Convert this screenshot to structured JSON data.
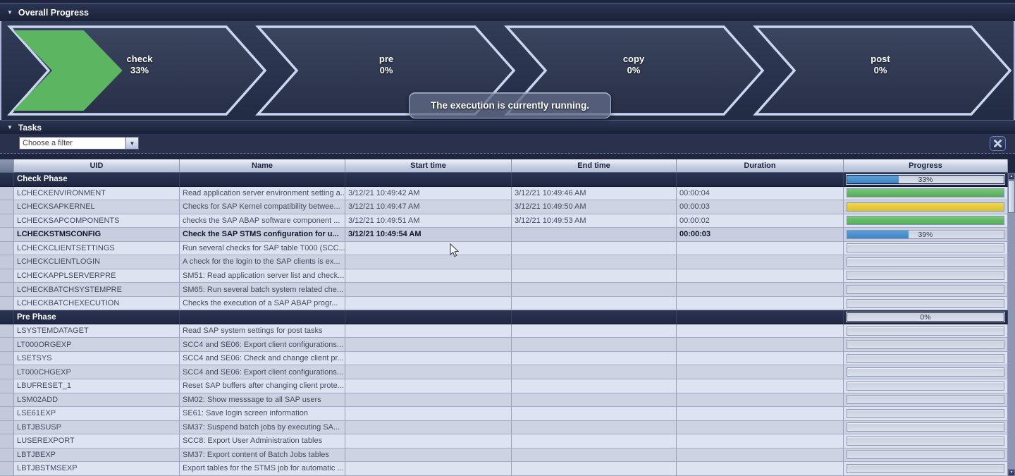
{
  "overall_progress": {
    "title": "Overall Progress",
    "phases": [
      {
        "label": "check",
        "percent": "33%",
        "fill": 33
      },
      {
        "label": "pre",
        "percent": "0%",
        "fill": 0
      },
      {
        "label": "copy",
        "percent": "0%",
        "fill": 0
      },
      {
        "label": "post",
        "percent": "0%",
        "fill": 0
      }
    ],
    "tooltip": "The execution is currently running."
  },
  "tasks": {
    "title": "Tasks",
    "filter_value": "Choose a filter",
    "columns": [
      "UID",
      "Name",
      "Start time",
      "End time",
      "Duration",
      "Progress"
    ],
    "rows": [
      {
        "type": "group",
        "uid": "Check Phase",
        "name": "",
        "start": "",
        "end": "",
        "duration": "",
        "progress": {
          "kind": "group",
          "value": 33,
          "label": "33%"
        }
      },
      {
        "type": "task",
        "uid": "LCHECKENVIRONMENT",
        "name": "Read application server environment setting a...",
        "start": "3/12/21 10:49:42 AM",
        "end": "3/12/21 10:49:46 AM",
        "duration": "00:00:04",
        "progress": {
          "kind": "full",
          "color": "green"
        }
      },
      {
        "type": "task",
        "uid": "LCHECKSAPKERNEL",
        "name": "Checks for SAP Kernel compatibility betwee...",
        "start": "3/12/21 10:49:47 AM",
        "end": "3/12/21 10:49:50 AM",
        "duration": "00:00:03",
        "progress": {
          "kind": "full",
          "color": "yellow"
        }
      },
      {
        "type": "task",
        "uid": "LCHECKSAPCOMPONENTS",
        "name": "checks the SAP ABAP software component ...",
        "start": "3/12/21 10:49:51 AM",
        "end": "3/12/21 10:49:53 AM",
        "duration": "00:00:02",
        "progress": {
          "kind": "full",
          "color": "green"
        }
      },
      {
        "type": "task",
        "emphasis": true,
        "uid": "LCHECKSTMSCONFIG",
        "name": "Check the SAP STMS configuration for u...",
        "start": "3/12/21 10:49:54 AM",
        "end": "",
        "duration": "00:00:03",
        "progress": {
          "kind": "partial",
          "value": 39,
          "label": "39%",
          "color": "blue"
        }
      },
      {
        "type": "task",
        "uid": "LCHECKCLIENTSETTINGS",
        "name": "Run several checks for SAP table T000 (SCC...",
        "start": "",
        "end": "",
        "duration": "",
        "progress": {
          "kind": "empty"
        }
      },
      {
        "type": "task",
        "uid": "LCHECKCLIENTLOGIN",
        "name": "A check for the login to the SAP clients is ex...",
        "start": "",
        "end": "",
        "duration": "",
        "progress": {
          "kind": "empty"
        }
      },
      {
        "type": "task",
        "uid": "LCHECKAPPLSERVERPRE",
        "name": "SM51: Read application server list and check...",
        "start": "",
        "end": "",
        "duration": "",
        "progress": {
          "kind": "empty"
        }
      },
      {
        "type": "task",
        "uid": "LCHECKBATCHSYSTEMPRE",
        "name": "SM65: Run several batch system related che...",
        "start": "",
        "end": "",
        "duration": "",
        "progress": {
          "kind": "empty"
        }
      },
      {
        "type": "task",
        "uid": "LCHECKBATCHEXECUTION",
        "name": "Checks the execution of a SAP ABAP progr...",
        "start": "",
        "end": "",
        "duration": "",
        "progress": {
          "kind": "empty"
        }
      },
      {
        "type": "group",
        "uid": "Pre Phase",
        "name": "",
        "start": "",
        "end": "",
        "duration": "",
        "progress": {
          "kind": "group",
          "value": 0,
          "label": "0%"
        }
      },
      {
        "type": "task",
        "uid": "LSYSTEMDATAGET",
        "name": "Read SAP system settings for post tasks",
        "start": "",
        "end": "",
        "duration": "",
        "progress": {
          "kind": "empty"
        }
      },
      {
        "type": "task",
        "uid": "LT000ORGEXP",
        "name": "SCC4 and SE06: Export client configurations...",
        "start": "",
        "end": "",
        "duration": "",
        "progress": {
          "kind": "empty"
        }
      },
      {
        "type": "task",
        "uid": "LSETSYS",
        "name": "SCC4 and SE06: Check and change client pr...",
        "start": "",
        "end": "",
        "duration": "",
        "progress": {
          "kind": "empty"
        }
      },
      {
        "type": "task",
        "uid": "LT000CHGEXP",
        "name": "SCC4 and SE06: Export client configurations...",
        "start": "",
        "end": "",
        "duration": "",
        "progress": {
          "kind": "empty"
        }
      },
      {
        "type": "task",
        "uid": "LBUFRESET_1",
        "name": "Reset SAP buffers after changing client prote...",
        "start": "",
        "end": "",
        "duration": "",
        "progress": {
          "kind": "empty"
        }
      },
      {
        "type": "task",
        "uid": "LSM02ADD",
        "name": "SM02: Show messsage to all SAP users",
        "start": "",
        "end": "",
        "duration": "",
        "progress": {
          "kind": "empty"
        }
      },
      {
        "type": "task",
        "uid": "LSE61EXP",
        "name": "SE61: Save login screen information",
        "start": "",
        "end": "",
        "duration": "",
        "progress": {
          "kind": "empty"
        }
      },
      {
        "type": "task",
        "uid": "LBTJBSUSP",
        "name": "SM37: Suspend batch jobs by executing SA...",
        "start": "",
        "end": "",
        "duration": "",
        "progress": {
          "kind": "empty"
        }
      },
      {
        "type": "task",
        "uid": "LUSEREXPORT",
        "name": "SCC8: Export User Administration tables",
        "start": "",
        "end": "",
        "duration": "",
        "progress": {
          "kind": "empty"
        }
      },
      {
        "type": "task",
        "uid": "LBTJBEXP",
        "name": "SM37: Export content of Batch Jobs tables",
        "start": "",
        "end": "",
        "duration": "",
        "progress": {
          "kind": "empty"
        }
      },
      {
        "type": "task",
        "uid": "LBTJBSTMSEXP",
        "name": "Export tables for the STMS job for automatic ...",
        "start": "",
        "end": "",
        "duration": "",
        "progress": {
          "kind": "empty"
        }
      }
    ]
  },
  "icons": {
    "collapse_triangle": "▼",
    "dropdown_arrow": "▼",
    "clear_cross": "✕",
    "scroll_up": "▲",
    "scroll_down": "▼"
  },
  "colors": {
    "green": "#5cb661",
    "yellow": "#e3c63c",
    "blue": "#4a90cc",
    "chevron_outline": "#ccd6f0",
    "group_row_bg": "#1e2742",
    "band_bg": "#2c3650"
  }
}
